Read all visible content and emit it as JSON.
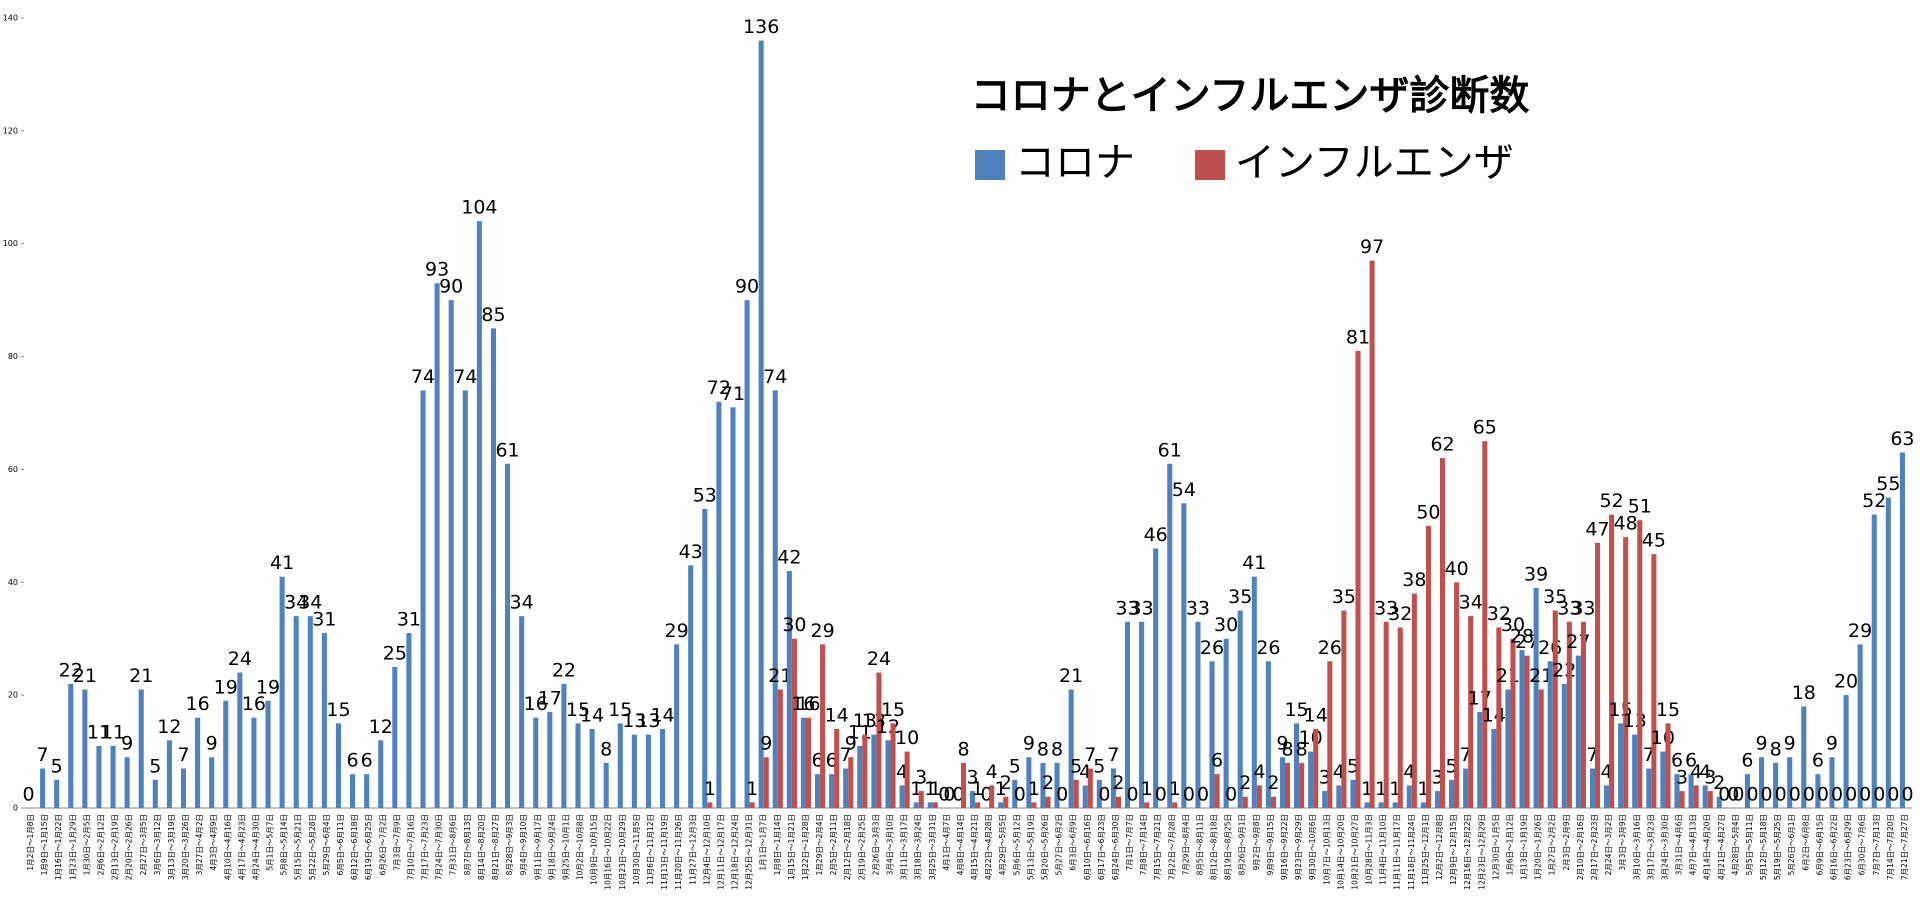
{
  "chart_data": {
    "type": "bar",
    "title": "コロナとインフルエンザ診断数",
    "categories": [
      "1月2日～1月8日",
      "1月9日～1月15日",
      "1月16日～1月22日",
      "1月23日～1月29日",
      "1月30日～2月5日",
      "2月6日～2月12日",
      "2月13日～2月19日",
      "2月20日～2月26日",
      "2月27日～3月5日",
      "3月6日～3月12日",
      "3月13日～3月19日",
      "3月20日～3月26日",
      "3月27日～4月2日",
      "4月3日～4月9日",
      "4月10日～4月16日",
      "4月17日～4月23日",
      "4月24日～4月30日",
      "5月1日～5月7日",
      "5月8日～5月14日",
      "5月15日～5月21日",
      "5月22日～5月28日",
      "5月29日～6月4日",
      "6月5日～6月11日",
      "6月12日～6月18日",
      "6月19日～6月25日",
      "6月26日～7月2日",
      "7月3日～7月9日",
      "7月10日～7月16日",
      "7月17日～7月23日",
      "7月24日～7月30日",
      "7月31日～8月6日",
      "8月7日～8月13日",
      "8月14日～8月20日",
      "8月21日～8月27日",
      "8月28日～9月3日",
      "9月4日～9月10日",
      "9月11日～9月17日",
      "9月18日～9月24日",
      "9月25日～10月1日",
      "10月2日～10月8日",
      "10月9日～10月15日",
      "10月16日～10月22日",
      "10月23日～10月29日",
      "10月30日～11月5日",
      "11月6日～11月12日",
      "11月13日～11月19日",
      "11月20日～11月26日",
      "11月27日～12月3日",
      "12月4日～12月10日",
      "12月11日～12月17日",
      "12月18日～12月24日",
      "12月25日～12月31日",
      "1月1日～1月7日",
      "1月8日～1月14日",
      "1月15日～1月21日",
      "1月22日～1月28日",
      "1月29日～2月4日",
      "2月5日～2月11日",
      "2月12日～2月18日",
      "2月19日～2月25日",
      "2月26日～3月3日",
      "3月4日～3月10日",
      "3月11日～3月17日",
      "3月18日～3月24日",
      "3月25日～3月31日",
      "4月1日～4月7日",
      "4月8日～4月14日",
      "4月15日～4月21日",
      "4月22日～4月28日",
      "4月29日～5月5日",
      "5月6日～5月12日",
      "5月13日～5月19日",
      "5月20日～5月26日",
      "5月27日～6月2日",
      "6月3日～6月9日",
      "6月10日～6月16日",
      "6月17日～6月23日",
      "6月24日～6月30日",
      "7月1日～7月7日",
      "7月8日～7月14日",
      "7月15日～7月21日",
      "7月22日～7月28日",
      "7月29日～8月4日",
      "8月5日～8月11日",
      "8月12日～8月18日",
      "8月19日～8月25日",
      "8月26日～9月1日",
      "9月2日～9月8日",
      "9月9日～9月15日",
      "9月16日～9月22日",
      "9月23日～9月29日",
      "9月30日～10月6日",
      "10月7日～10月13日",
      "10月14日～10月20日",
      "10月21日～10月27日",
      "10月28日～11月3日",
      "11月4日～11月10日",
      "11月11日～11月17日",
      "11月18日～11月24日",
      "11月25日～12月1日",
      "12月2日～12月8日",
      "12月9日～12月15日",
      "12月16日～12月22日",
      "12月23日～12月29日",
      "12月30日～1月5日",
      "1月6日～1月12日",
      "1月13日～1月19日",
      "1月20日～1月26日",
      "1月27日～2月2日",
      "2月3日～2月9日",
      "2月10日～2月16日",
      "2月17日～2月23日",
      "2月24日～3月2日",
      "3月3日～3月9日",
      "3月10日～3月16日",
      "3月17日～3月23日",
      "3月24日～3月30日",
      "3月31日～4月6日",
      "4月7日～4月13日",
      "4月14日～4月20日",
      "4月21日～4月27日",
      "4月28日～5月4日",
      "5月5日～5月11日",
      "5月12日～5月18日",
      "5月19日～5月25日",
      "5月26日～6月1日",
      "6月2日～6月8日",
      "6月9日～6月15日",
      "6月16日～6月22日",
      "6月23日～6月29日",
      "6月30日～7月6日",
      "7月7日～7月13日",
      "7月14日～7月20日",
      "7月21日～7月27日"
    ],
    "series": [
      {
        "name": "コロナ",
        "color": "#4f81bd",
        "values": [
          0,
          7,
          5,
          22,
          21,
          11,
          11,
          9,
          21,
          5,
          12,
          7,
          16,
          9,
          19,
          24,
          16,
          19,
          41,
          34,
          34,
          31,
          15,
          6,
          6,
          12,
          25,
          31,
          74,
          93,
          90,
          74,
          104,
          85,
          61,
          34,
          16,
          17,
          22,
          15,
          14,
          8,
          15,
          13,
          13,
          14,
          29,
          43,
          53,
          72,
          71,
          90,
          136,
          74,
          42,
          16,
          6,
          6,
          7,
          11,
          13,
          12,
          4,
          1,
          1,
          0,
          0,
          3,
          0,
          1,
          5,
          9,
          8,
          8,
          21,
          4,
          5,
          7,
          33,
          33,
          46,
          61,
          54,
          33,
          26,
          30,
          35,
          41,
          26,
          9,
          15,
          10,
          3,
          4,
          5,
          1,
          1,
          1,
          4,
          1,
          3,
          5,
          7,
          17,
          14,
          21,
          28,
          39,
          26,
          22,
          27,
          7,
          4,
          15,
          13,
          7,
          10,
          6,
          6,
          4,
          2,
          0,
          6,
          9,
          8,
          9,
          18,
          6,
          9,
          20,
          29,
          52,
          55,
          63
        ]
      },
      {
        "name": "インフルエンザ",
        "color": "#c0504d",
        "values": [
          null,
          null,
          null,
          null,
          null,
          null,
          null,
          null,
          null,
          null,
          null,
          null,
          null,
          null,
          null,
          null,
          null,
          null,
          null,
          null,
          null,
          null,
          null,
          null,
          null,
          null,
          null,
          null,
          null,
          null,
          null,
          null,
          null,
          null,
          null,
          null,
          null,
          null,
          null,
          null,
          null,
          null,
          null,
          null,
          null,
          null,
          null,
          null,
          1,
          null,
          null,
          1,
          9,
          21,
          30,
          16,
          29,
          14,
          9,
          13,
          24,
          15,
          10,
          3,
          1,
          0,
          8,
          1,
          4,
          2,
          0,
          1,
          2,
          0,
          5,
          7,
          0,
          2,
          0,
          1,
          0,
          1,
          0,
          0,
          6,
          0,
          2,
          4,
          2,
          8,
          8,
          14,
          26,
          35,
          81,
          97,
          33,
          32,
          38,
          50,
          62,
          40,
          34,
          65,
          32,
          30,
          27,
          21,
          35,
          33,
          33,
          47,
          52,
          48,
          51,
          45,
          15,
          3,
          4,
          3,
          0,
          0,
          0,
          0,
          0,
          0,
          0,
          0,
          0,
          0,
          0,
          0,
          0,
          0
        ]
      }
    ],
    "ylim": [
      0,
      140
    ],
    "yticks": [
      0,
      20,
      40,
      60,
      80,
      100,
      120,
      140
    ],
    "grid": false,
    "legend": "top-right"
  }
}
